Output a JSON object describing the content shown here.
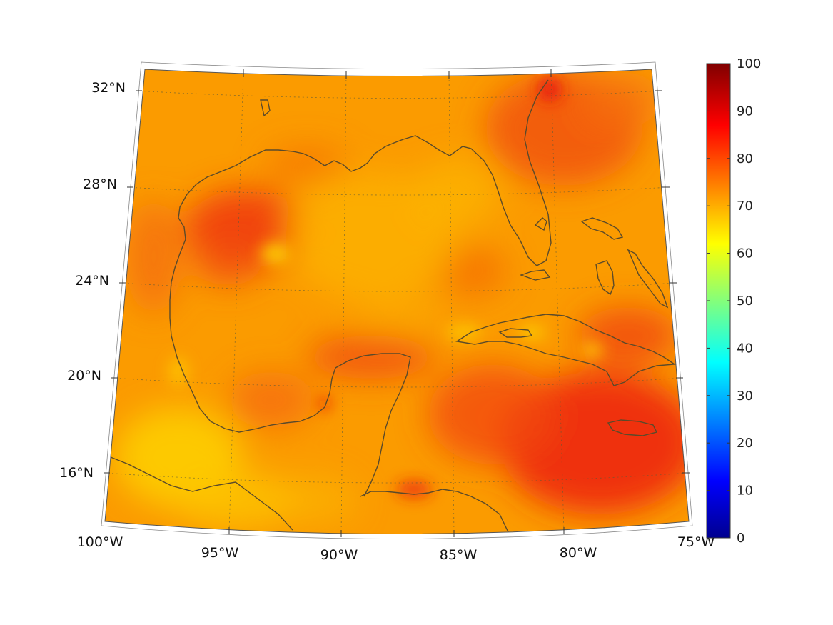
{
  "map": {
    "lat_labels": [
      {
        "lat": 32,
        "label": "32°N"
      },
      {
        "lat": 28,
        "label": "28°N"
      },
      {
        "lat": 24,
        "label": "24°N"
      },
      {
        "lat": 20,
        "label": "20°N"
      },
      {
        "lat": 16,
        "label": "16°N"
      }
    ],
    "lon_labels": [
      {
        "lon": -100,
        "label": "100°W"
      },
      {
        "lon": -95,
        "label": "95°W"
      },
      {
        "lon": -90,
        "label": "90°W"
      },
      {
        "lon": -85,
        "label": "85°W"
      },
      {
        "lon": -80,
        "label": "80°W"
      },
      {
        "lon": -75,
        "label": "75°W"
      }
    ],
    "extent": {
      "lon": [
        -100,
        -75
      ],
      "lat": [
        14,
        32.5
      ]
    },
    "coastline_color": "#5a4a2a"
  },
  "colorbar": {
    "min": 0,
    "max": 100,
    "ticks": [
      "0",
      "10",
      "20",
      "30",
      "40",
      "50",
      "60",
      "70",
      "80",
      "90",
      "100"
    ],
    "colormap": "jet"
  }
}
